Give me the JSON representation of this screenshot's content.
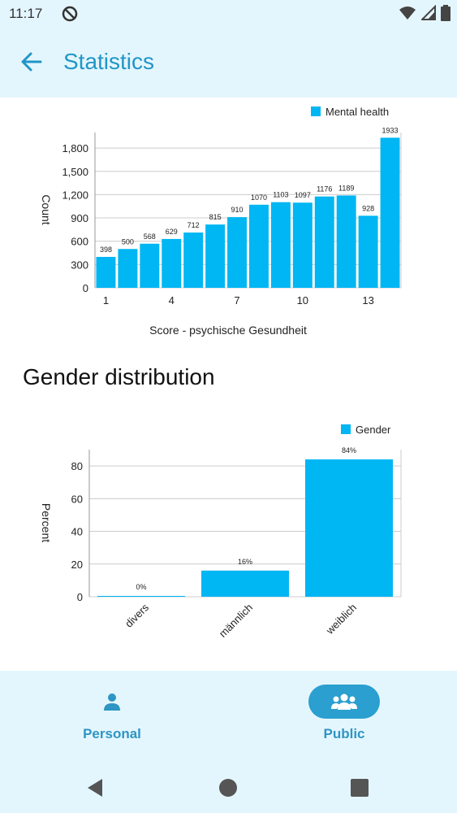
{
  "status_bar": {
    "time": "11:17"
  },
  "app_bar": {
    "title": "Statistics",
    "back_icon": "arrow-left-icon"
  },
  "chart1": {
    "chart_data": {
      "type": "bar",
      "x": [
        1,
        2,
        3,
        4,
        5,
        6,
        7,
        8,
        9,
        10,
        11,
        12,
        13,
        14
      ],
      "values": [
        398,
        500,
        568,
        629,
        712,
        815,
        910,
        1070,
        1103,
        1097,
        1176,
        1189,
        928,
        1933
      ],
      "series": [
        {
          "name": "Mental health",
          "values": [
            398,
            500,
            568,
            629,
            712,
            815,
            910,
            1070,
            1103,
            1097,
            1176,
            1189,
            928,
            1933
          ]
        }
      ],
      "xlabel": "Score - psychische Gesundheit",
      "ylabel": "Count",
      "ylim": [
        0,
        2000
      ],
      "yticks": [
        "0",
        "300",
        "600",
        "900",
        "1,200",
        "1,500",
        "1,800"
      ],
      "xticks": [
        "1",
        "4",
        "7",
        "10",
        "13"
      ],
      "legend": "top-right",
      "color": "#00b6f3"
    }
  },
  "section": {
    "gender_title": "Gender distribution"
  },
  "chart2": {
    "chart_data": {
      "type": "bar",
      "categories": [
        "divers",
        "männlich",
        "weiblich"
      ],
      "values": [
        0.5,
        16,
        84
      ],
      "value_labels": [
        "0%",
        "16%",
        "84%"
      ],
      "series": [
        {
          "name": "Gender",
          "values": [
            0.5,
            16,
            84
          ]
        }
      ],
      "xlabel": "Gender",
      "ylabel": "Percent",
      "ylim": [
        0,
        90
      ],
      "yticks": [
        "0",
        "20",
        "40",
        "60",
        "80"
      ],
      "legend": "top-right",
      "color": "#00b6f3"
    }
  },
  "bottom_nav": {
    "items": [
      {
        "label": "Personal",
        "icon": "person-icon",
        "active": false
      },
      {
        "label": "Public",
        "icon": "group-icon",
        "active": true
      }
    ]
  }
}
